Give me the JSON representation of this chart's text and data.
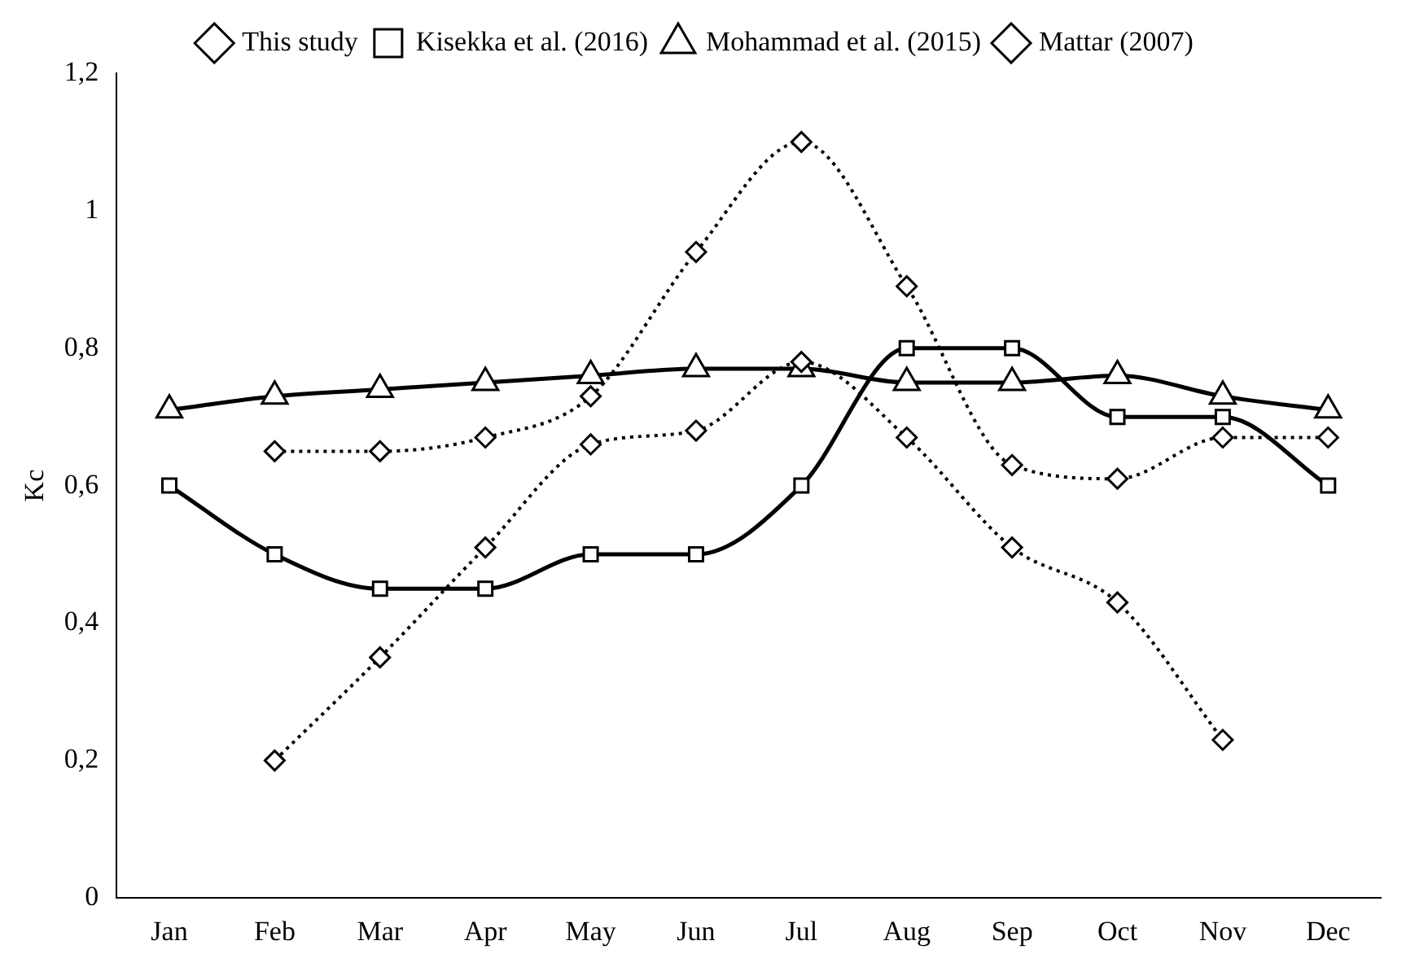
{
  "chart_data": {
    "type": "line",
    "ylabel": "Kc",
    "categories": [
      "Jan",
      "Feb",
      "Mar",
      "Apr",
      "May",
      "Jun",
      "Jul",
      "Aug",
      "Sep",
      "Oct",
      "Nov",
      "Dec"
    ],
    "series": [
      {
        "name": "This study",
        "color": "#000000",
        "marker": "diamond",
        "line_style": "dotted",
        "values": [
          null,
          0.2,
          0.35,
          0.51,
          0.66,
          0.68,
          0.78,
          0.67,
          0.51,
          0.43,
          0.23,
          null
        ]
      },
      {
        "name": "Kisekka et al. (2016)",
        "color": "#000000",
        "marker": "square",
        "line_style": "solid",
        "values": [
          0.6,
          0.5,
          0.45,
          0.45,
          0.5,
          0.5,
          0.6,
          0.8,
          0.8,
          0.7,
          0.7,
          0.6
        ]
      },
      {
        "name": "Mohammad et al. (2015)",
        "color": "#000000",
        "marker": "triangle",
        "line_style": "solid",
        "values": [
          0.71,
          0.73,
          0.74,
          0.75,
          0.76,
          0.77,
          0.77,
          0.75,
          0.75,
          0.76,
          0.73,
          0.71
        ]
      },
      {
        "name": "Mattar (2007)",
        "color": "#000000",
        "marker": "diamond",
        "line_style": "dotted",
        "values": [
          null,
          0.65,
          0.65,
          0.67,
          0.73,
          0.94,
          1.1,
          0.89,
          0.63,
          0.61,
          0.67,
          0.67
        ]
      }
    ],
    "ylim": [
      0,
      1.2
    ],
    "yticks": [
      0,
      {
        "value": 0.2,
        "label": "0,2"
      },
      {
        "value": 0.4,
        "label": "0,4"
      },
      {
        "value": 0.6,
        "label": "0,6"
      },
      {
        "value": 0.8,
        "label": "0,8"
      },
      1,
      {
        "value": 1.2,
        "label": "1,2"
      }
    ],
    "grid": false,
    "legend": "top"
  }
}
